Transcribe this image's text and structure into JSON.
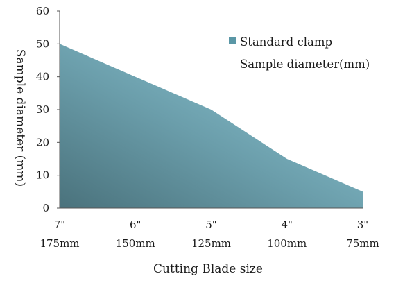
{
  "chart_data": {
    "type": "area",
    "categories": [
      {
        "line1": "7\"",
        "line2": "175mm"
      },
      {
        "line1": "6\"",
        "line2": "150mm"
      },
      {
        "line1": "5\"",
        "line2": "125mm"
      },
      {
        "line1": "4\"",
        "line2": "100mm"
      },
      {
        "line1": "3\"",
        "line2": "75mm"
      }
    ],
    "series": [
      {
        "name_line1": "Standard clamp",
        "name_line2": "Sample diameter(mm)",
        "values": [
          50,
          40,
          30,
          15,
          5
        ]
      }
    ],
    "title": "",
    "xlabel": "Cutting Blade size",
    "ylabel": "Sample diameter (mm)",
    "ylim": [
      0,
      60
    ],
    "yticks": [
      "0",
      "10",
      "20",
      "30",
      "40",
      "50",
      "60"
    ],
    "grid": false,
    "legend_position": "right",
    "colors": {
      "fill_dark": "#4a727c",
      "fill_mid": "#6b9eab",
      "fill_light": "#93cfdd",
      "legend_swatch": "#5a97a6"
    }
  }
}
